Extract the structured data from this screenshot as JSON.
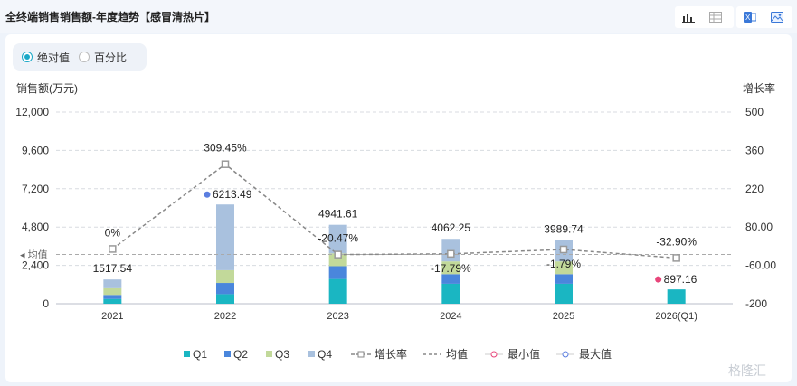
{
  "header": {
    "title": "全终端销售销售额-年度趋势【感冒清热片】",
    "icons": [
      "bar-chart-icon",
      "table-icon",
      "excel-icon",
      "image-icon"
    ]
  },
  "mode": {
    "options": [
      "绝对值",
      "百分比"
    ],
    "selected": "绝对值"
  },
  "watermark": "格隆汇",
  "colors": {
    "Q1": "#1ab6c2",
    "Q2": "#4a86dc",
    "Q3": "#c2d99a",
    "Q4": "#a9c1de",
    "line": "#888888",
    "min": "#e8457a",
    "max": "#5b7ee0"
  },
  "chart_data": {
    "type": "bar",
    "categories": [
      "2021",
      "2022",
      "2023",
      "2024",
      "2025",
      "2026(Q1)"
    ],
    "ylabel_left": "销售额(万元)",
    "ylabel_right": "增长率",
    "ylim_left": [
      0,
      12000
    ],
    "ylim_right": [
      -200,
      500
    ],
    "yticks_left": [
      "12,000",
      "9,600",
      "7,200",
      "4,800",
      "2,400",
      "0"
    ],
    "yticks_right": [
      "500",
      "360",
      "220",
      "80.00",
      "-60.00",
      "-200"
    ],
    "series": [
      {
        "name": "Q1",
        "values": [
          300,
          600,
          1550,
          1250,
          1250,
          897.16
        ]
      },
      {
        "name": "Q2",
        "values": [
          250,
          700,
          800,
          600,
          600,
          0
        ]
      },
      {
        "name": "Q3",
        "values": [
          420,
          800,
          800,
          800,
          800,
          0
        ]
      },
      {
        "name": "Q4",
        "values": [
          547.54,
          4113.49,
          1791.61,
          1412.25,
          1339.74,
          0
        ]
      }
    ],
    "totals": [
      1517.54,
      6213.49,
      4941.61,
      4062.25,
      3989.74,
      897.16
    ],
    "total_labels": [
      "1517.54",
      "6213.49",
      "4941.61",
      "4062.25",
      "3989.74",
      "897.16"
    ],
    "growth": {
      "name": "增长率",
      "values": [
        0,
        309.45,
        -20.47,
        -17.79,
        -1.79,
        -32.9
      ],
      "labels": [
        "0%",
        "309.45%",
        "-20.47%",
        "-17.79%",
        "-1.79%",
        "-32.90%"
      ]
    },
    "average": {
      "name": "均值",
      "label": "均值",
      "value": -20
    },
    "min": {
      "name": "最小值",
      "index": 5
    },
    "max": {
      "name": "最大值",
      "index": 1
    },
    "legend": [
      "Q1",
      "Q2",
      "Q3",
      "Q4",
      "增长率",
      "均值",
      "最小值",
      "最大值"
    ],
    "grid": true,
    "legend_position": "bottom"
  }
}
